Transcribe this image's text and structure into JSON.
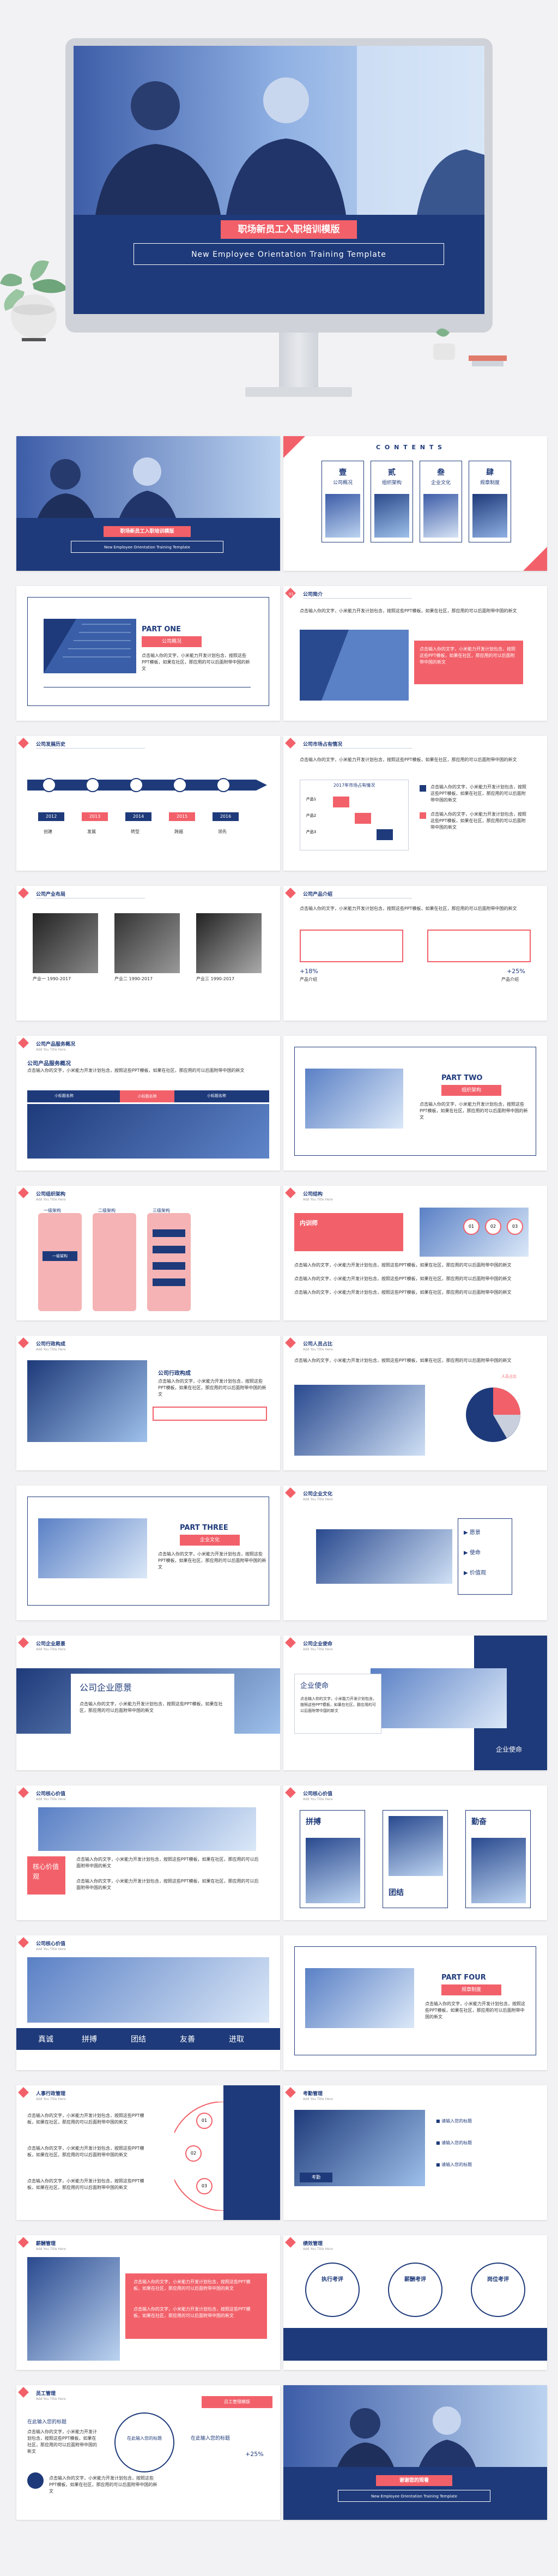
{
  "hero": {
    "title": "职场新员工入职培训模版",
    "subtitle": "New Employee Orientation Training Template"
  },
  "s1": {
    "title": "职场新员工入职培训模版",
    "subtitle": "New Employee Orientation Training Template"
  },
  "s2": {
    "contents": "C O N T E N T S",
    "items": [
      {
        "num": "壹",
        "label": "公司概况"
      },
      {
        "num": "贰",
        "label": "组织架构"
      },
      {
        "num": "叁",
        "label": "企业文化"
      },
      {
        "num": "肆",
        "label": "规章制度"
      }
    ]
  },
  "s3": {
    "part": "PART ONE",
    "label": "公司概况"
  },
  "s4": {
    "title": "公司简介",
    "body": "点击输入你的文字，小米能力开发计划包含，按照这些PPT模板，如果在社区，那应用的可以后面附带中国的新文"
  },
  "s5": {
    "title": "公司发展历史",
    "years": [
      "2012",
      "2013",
      "2014",
      "2015",
      "2016"
    ],
    "labels": [
      "创建",
      "发展",
      "转型",
      "跨越",
      "领先"
    ]
  },
  "s6": {
    "title": "公司市场占有情况",
    "table": "2017年市场占有情况",
    "rows": [
      "产品1",
      "产品2",
      "产品3"
    ]
  },
  "s7": {
    "title": "公司产业布局",
    "labels": [
      "产业一 1990-2017",
      "产业二 1990-2017",
      "产业三 1990-2017"
    ]
  },
  "s8": {
    "title": "公司产品介绍",
    "pcts": [
      "+18%",
      "+25%"
    ],
    "caps": [
      "产品介绍",
      "产品介绍"
    ]
  },
  "s9": {
    "title": "公司产品服务概况",
    "sub": "Add You Title Here",
    "heading": "公司产品服务概况",
    "tabs": [
      "小标题名称",
      "小标题名称",
      "小标题名称"
    ]
  },
  "s10": {
    "part": "PART TWO",
    "label": "组织架构"
  },
  "s11": {
    "title": "公司组织架构",
    "sub": "Add You Title Here",
    "cols": [
      "一级架构",
      "二级架构",
      "三级架构"
    ],
    "box": "一级架构"
  },
  "s12": {
    "title": "公司结构",
    "sub": "Add You Title Here",
    "name": "内训师",
    "nums": [
      "01",
      "02",
      "03"
    ]
  },
  "s13": {
    "title": "公司行政构成",
    "sub": "Add You Title Here",
    "heading": "公司行政构成"
  },
  "s14": {
    "title": "公司人员占比",
    "sub": "Add You Title Here",
    "legend": "人员占比"
  },
  "s15": {
    "part": "PART THREE",
    "label": "企业文化"
  },
  "s16": {
    "title": "公司企业文化",
    "sub": "Add You Title Here",
    "items": [
      "愿景",
      "使命",
      "价值观"
    ]
  },
  "s17": {
    "title": "公司企业愿景",
    "sub": "Add You Title Here",
    "heading": "公司企业愿景"
  },
  "s18": {
    "title": "公司企业使命",
    "sub": "Add You Title Here",
    "heading": "企业使命",
    "side": "企业使命"
  },
  "s19": {
    "title": "公司核心价值",
    "sub": "Add You Title Here",
    "box": "核心价值观"
  },
  "s20": {
    "title": "公司核心价值",
    "sub": "Add You Title Here",
    "words": [
      "拼搏",
      "勤奋",
      "团结"
    ]
  },
  "s21": {
    "title": "公司核心价值",
    "sub": "Add You Title Here",
    "words": [
      "真诚",
      "拼搏",
      "团结",
      "友善",
      "进取"
    ]
  },
  "s22": {
    "part": "PART FOUR",
    "label": "规章制度"
  },
  "s23": {
    "title": "人事行政管理",
    "sub": "Add You Title Here",
    "nums": [
      "01",
      "02",
      "03"
    ]
  },
  "s24": {
    "title": "考勤管理",
    "sub": "Add You Title Here",
    "items": [
      "请输入您的标题",
      "请输入您的标题",
      "请输入您的标题"
    ],
    "tag": "考勤"
  },
  "s25": {
    "title": "薪酬管理",
    "sub": "Add You Title Here"
  },
  "s26": {
    "title": "绩效管理",
    "sub": "Add You Title Here",
    "items": [
      "执行考评",
      "薪酬考评",
      "岗位考评"
    ]
  },
  "s27": {
    "title": "员工管理",
    "sub": "Add You Title Here",
    "left": "在此输入您的标题",
    "center": "在此输入您的标题",
    "right": "在此输入您的标题",
    "pct": "+25%",
    "badge": "员工管理模版"
  },
  "s28": {
    "title": "谢谢您的观看",
    "subtitle": "New Employee Orientation Training Template"
  },
  "body_text": "点击输入你的文字，小米能力开发计划包含，按照这些PPT模板，如果在社区，那应用的可以后面附带中国的新文"
}
